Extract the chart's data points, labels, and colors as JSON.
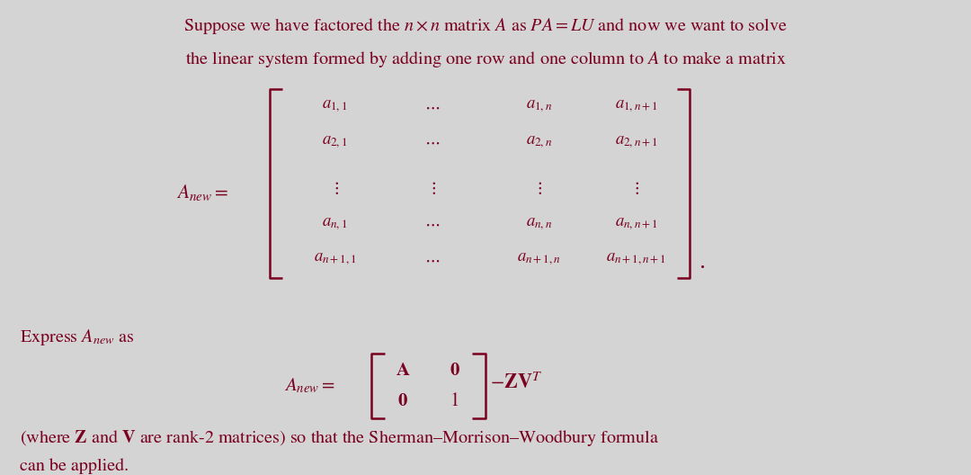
{
  "background_color": "#d4d4d4",
  "text_color": "#7a0020",
  "font_size_main": 14.5,
  "font_size_matrix": 13.5,
  "font_size_eq2": 15
}
